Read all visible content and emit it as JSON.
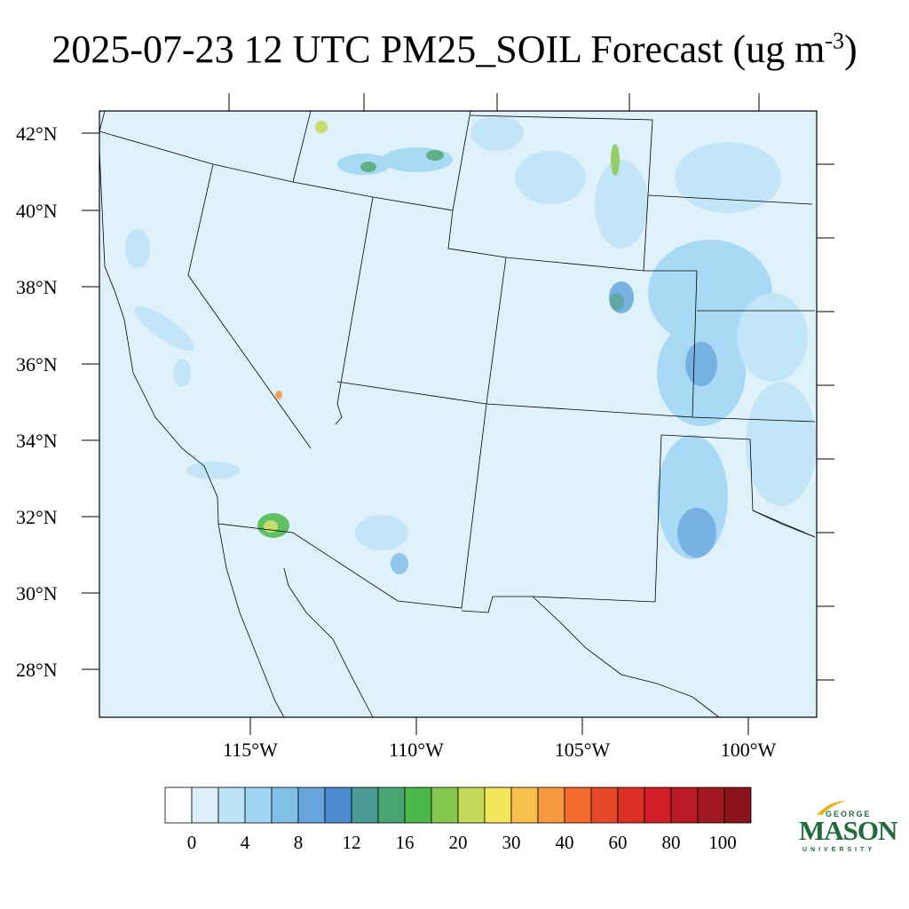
{
  "title": {
    "main": "2025-07-23 12 UTC PM25_SOIL Forecast (ug m",
    "sup": "-3",
    "close": ")"
  },
  "lat_labels": [
    "42°N",
    "40°N",
    "38°N",
    "36°N",
    "34°N",
    "32°N",
    "30°N",
    "28°N"
  ],
  "lon_labels": [
    "115°W",
    "110°W",
    "105°W",
    "100°W"
  ],
  "colorbar": {
    "labels": [
      "0",
      "4",
      "8",
      "12",
      "16",
      "20",
      "30",
      "40",
      "60",
      "80",
      "100"
    ],
    "colors": [
      "#ffffff",
      "#dcf0fb",
      "#bde4f7",
      "#9fd6f4",
      "#82bfe6",
      "#66a6dd",
      "#4b8bcf",
      "#4a9a96",
      "#4aa572",
      "#4ab84a",
      "#86c84d",
      "#c3d957",
      "#f7e65a",
      "#f8bf4d",
      "#f6983d",
      "#f26a2c",
      "#e8482a",
      "#dd3126",
      "#d11f2a",
      "#b81b26",
      "#a01822",
      "#8a141e"
    ]
  },
  "logo": {
    "line1": "GEORGE",
    "line2": "MASON",
    "line3": "UNIVERSITY",
    "color": "#1f6b3a"
  },
  "map": {
    "background": "#dff1fb"
  }
}
